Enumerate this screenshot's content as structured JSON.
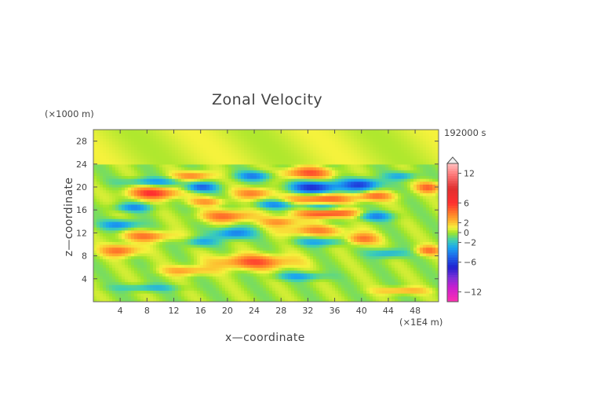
{
  "chart_data": {
    "type": "heatmap",
    "title": "Zonal Velocity",
    "xlabel": "x—coordinate",
    "ylabel": "z—coordinate",
    "x_unit_label": "(×1E4 m)",
    "y_unit_label": "(×1000 m)",
    "time_label": "192000 s",
    "xlim": [
      0,
      51.5
    ],
    "ylim": [
      0,
      30
    ],
    "x_ticks": [
      4,
      8,
      12,
      16,
      20,
      24,
      28,
      32,
      36,
      40,
      44,
      48
    ],
    "y_ticks": [
      4,
      8,
      12,
      16,
      20,
      24,
      28
    ],
    "colorbar": {
      "range": [
        -14,
        14
      ],
      "ticks": [
        12,
        6,
        2,
        0,
        -2,
        -6,
        -12
      ],
      "stops": [
        {
          "value": -14,
          "color": "#ff2fb0"
        },
        {
          "value": -11,
          "color": "#c81fd0"
        },
        {
          "value": -9,
          "color": "#7a30d8"
        },
        {
          "value": -7,
          "color": "#2020d0"
        },
        {
          "value": -5,
          "color": "#1e5fe8"
        },
        {
          "value": -3,
          "color": "#1aa6f0"
        },
        {
          "value": -1.5,
          "color": "#3fd0b0"
        },
        {
          "value": 0,
          "color": "#9ee52a"
        },
        {
          "value": 1,
          "color": "#f5f23c"
        },
        {
          "value": 2.5,
          "color": "#ffb02e"
        },
        {
          "value": 4,
          "color": "#ff7a2a"
        },
        {
          "value": 6,
          "color": "#ff3030"
        },
        {
          "value": 9,
          "color": "#e03030"
        },
        {
          "value": 12,
          "color": "#ff8080"
        },
        {
          "value": 14,
          "color": "#ffc0c0"
        }
      ]
    },
    "bands": [
      {
        "z": 9.0,
        "x_center": 4,
        "x_half": 3,
        "thick": 1.0,
        "value": 4.5
      },
      {
        "z": 11.5,
        "x_center": 8,
        "x_half": 4,
        "thick": 0.9,
        "value": 4
      },
      {
        "z": 13.5,
        "x_center": 4,
        "x_half": 3,
        "thick": 0.8,
        "value": -4
      },
      {
        "z": 16.5,
        "x_center": 6,
        "x_half": 3,
        "thick": 0.7,
        "value": -3.5
      },
      {
        "z": 19.0,
        "x_center": 9,
        "x_half": 4,
        "thick": 1.0,
        "value": 6
      },
      {
        "z": 21.0,
        "x_center": 9,
        "x_half": 5,
        "thick": 0.7,
        "value": -3
      },
      {
        "z": 22.0,
        "x_center": 15,
        "x_half": 3,
        "thick": 0.8,
        "value": 4
      },
      {
        "z": 20.0,
        "x_center": 16,
        "x_half": 2.5,
        "thick": 0.8,
        "value": -5
      },
      {
        "z": 17.5,
        "x_center": 17,
        "x_half": 3,
        "thick": 0.7,
        "value": 3
      },
      {
        "z": 15.0,
        "x_center": 20,
        "x_half": 4,
        "thick": 1.0,
        "value": 4.5
      },
      {
        "z": 12.0,
        "x_center": 21,
        "x_half": 3,
        "thick": 1.0,
        "value": -4.5
      },
      {
        "z": 10.5,
        "x_center": 16,
        "x_half": 2.5,
        "thick": 0.8,
        "value": -3
      },
      {
        "z": 7.0,
        "x_center": 24,
        "x_half": 6,
        "thick": 1.2,
        "value": 5
      },
      {
        "z": 5.5,
        "x_center": 14,
        "x_half": 4,
        "thick": 0.8,
        "value": 3
      },
      {
        "z": 4.5,
        "x_center": 31,
        "x_half": 4,
        "thick": 0.7,
        "value": -3
      },
      {
        "z": 22.0,
        "x_center": 24,
        "x_half": 3,
        "thick": 0.8,
        "value": -4
      },
      {
        "z": 19.0,
        "x_center": 24,
        "x_half": 3,
        "thick": 0.9,
        "value": 4
      },
      {
        "z": 17.0,
        "x_center": 27,
        "x_half": 3,
        "thick": 0.7,
        "value": -3.5
      },
      {
        "z": 14.0,
        "x_center": 28,
        "x_half": 3,
        "thick": 0.8,
        "value": 3.5
      },
      {
        "z": 22.5,
        "x_center": 32,
        "x_half": 4,
        "thick": 1.0,
        "value": 5
      },
      {
        "z": 20.0,
        "x_center": 33,
        "x_half": 4,
        "thick": 1.1,
        "value": -6.5
      },
      {
        "z": 18.0,
        "x_center": 34,
        "x_half": 5,
        "thick": 0.9,
        "value": 5
      },
      {
        "z": 16.5,
        "x_center": 34,
        "x_half": 4,
        "thick": 0.7,
        "value": -3
      },
      {
        "z": 15.5,
        "x_center": 35,
        "x_half": 5,
        "thick": 0.8,
        "value": 6
      },
      {
        "z": 12.5,
        "x_center": 33,
        "x_half": 5,
        "thick": 0.9,
        "value": 3.5
      },
      {
        "z": 10.5,
        "x_center": 34,
        "x_half": 4,
        "thick": 0.7,
        "value": -3
      },
      {
        "z": 20.5,
        "x_center": 40,
        "x_half": 3,
        "thick": 1.0,
        "value": -6
      },
      {
        "z": 18.5,
        "x_center": 42,
        "x_half": 3,
        "thick": 0.8,
        "value": 4
      },
      {
        "z": 15.0,
        "x_center": 42,
        "x_half": 3,
        "thick": 0.8,
        "value": -4
      },
      {
        "z": 11.0,
        "x_center": 40,
        "x_half": 2.5,
        "thick": 1.0,
        "value": 4.5
      },
      {
        "z": 8.5,
        "x_center": 44,
        "x_half": 3,
        "thick": 0.8,
        "value": -3
      },
      {
        "z": 9.0,
        "x_center": 50,
        "x_half": 2,
        "thick": 0.8,
        "value": 4
      },
      {
        "z": 20.0,
        "x_center": 50,
        "x_half": 2,
        "thick": 0.9,
        "value": 4.5
      },
      {
        "z": 22.0,
        "x_center": 46,
        "x_half": 2.5,
        "thick": 0.7,
        "value": -3
      },
      {
        "z": 2.0,
        "x_center": 46,
        "x_half": 4,
        "thick": 0.6,
        "value": 3
      },
      {
        "z": 2.5,
        "x_center": 8,
        "x_half": 5,
        "thick": 0.6,
        "value": -2.5
      }
    ]
  }
}
